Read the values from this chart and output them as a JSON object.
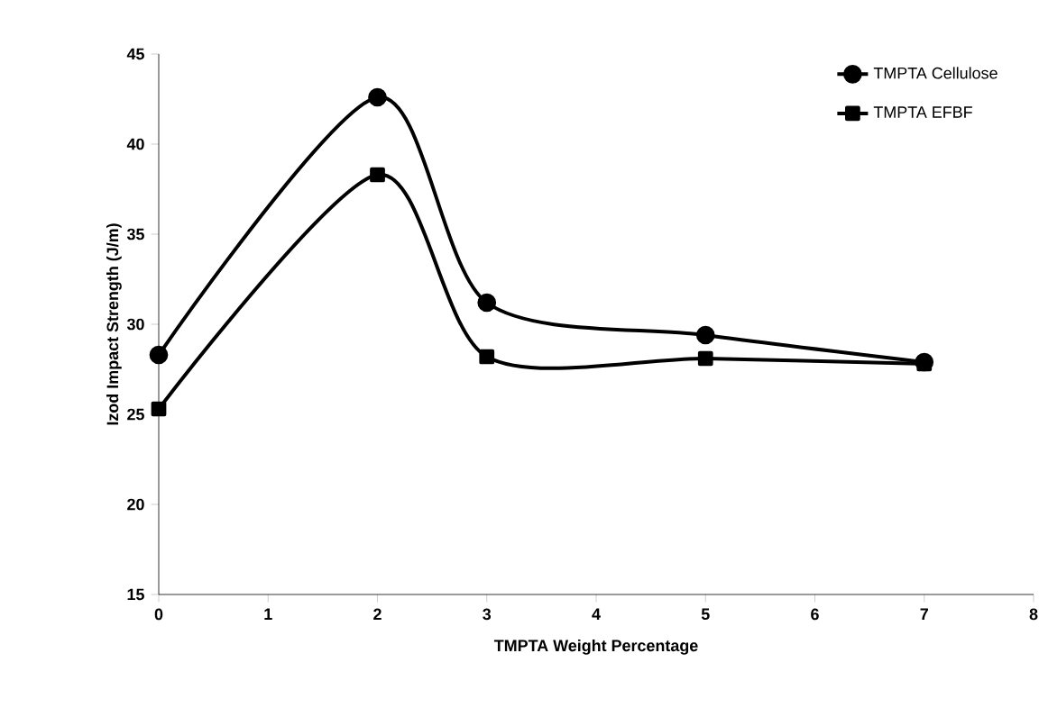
{
  "chart_data": {
    "type": "line",
    "xlabel": "TMPTA Weight Percentage",
    "ylabel": "Izod Impact Strength (J/m)",
    "x": [
      0,
      2,
      3,
      5,
      7
    ],
    "series": [
      {
        "name": "TMPTA Cellulose",
        "color": "#000000",
        "marker": "circle",
        "values": [
          28.3,
          42.6,
          31.2,
          29.4,
          27.9
        ]
      },
      {
        "name": "TMPTA EFBF",
        "color": "#000000",
        "marker": "square",
        "values": [
          25.3,
          38.3,
          28.2,
          28.1,
          27.8
        ]
      }
    ],
    "xlim": [
      0,
      8
    ],
    "xticks": [
      0,
      1,
      2,
      3,
      4,
      5,
      6,
      7,
      8
    ],
    "ylim": [
      15,
      45
    ],
    "yticks": [
      15,
      20,
      25,
      30,
      35,
      40,
      45
    ],
    "grid": false,
    "legend": "top right",
    "line_style": "solid"
  }
}
